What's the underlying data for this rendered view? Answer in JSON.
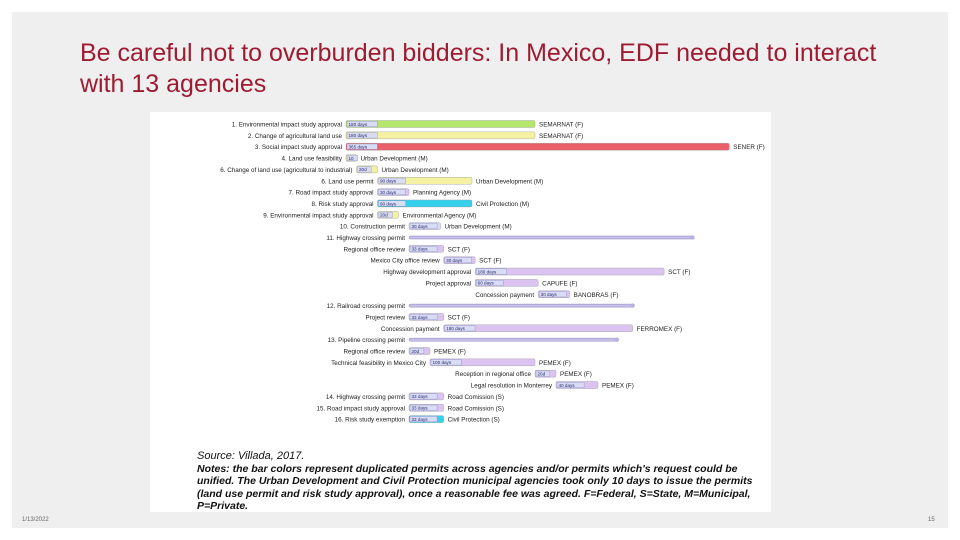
{
  "slide": {
    "title": "Be careful not to overburden bidders: In Mexico,  EDF needed to interact with 13 agencies",
    "date": "1/13/2022",
    "page_number": "15"
  },
  "chart_data": {
    "type": "gantt",
    "colors": {
      "green": "#b5e86a",
      "yellow": "#f4f2a2",
      "red": "#ea5f6a",
      "cyan": "#35d0ec",
      "purple": "#dcc4f2",
      "label_box": "#d9dcf4"
    },
    "rows": [
      {
        "task": "1. Environmental impact study approval",
        "bar": "180 days",
        "start": 0,
        "days": 180,
        "color": "green",
        "agency": "SEMARNAT (F)"
      },
      {
        "task": "2. Change of agricultural land use",
        "bar": "180 days",
        "start": 0,
        "days": 180,
        "color": "yellow",
        "agency": "SEMARNAT (F)"
      },
      {
        "task": "3. Social impact study approval",
        "bar": "365 days",
        "start": 0,
        "days": 365,
        "color": "red",
        "agency": "SENER (F)"
      },
      {
        "task": "4. Land use feasibility",
        "bar": "10",
        "start": 0,
        "days": 10,
        "color": "yellow",
        "agency": "Urban Development (M)"
      },
      {
        "task": "6. Change of land use (agricultural to industrial)",
        "bar": "20d",
        "start": 10,
        "days": 20,
        "color": "yellow",
        "agency": "Urban Development (M)"
      },
      {
        "task": "6. Land use permit",
        "bar": "90 days",
        "start": 30,
        "days": 90,
        "color": "yellow",
        "agency": "Urban Development (M)"
      },
      {
        "task": "7. Road impact study approval",
        "bar": "30 days",
        "start": 30,
        "days": 30,
        "color": "purple",
        "agency": "Planning Agency (M)"
      },
      {
        "task": "8. Risk study approval",
        "bar": "90 days",
        "start": 30,
        "days": 90,
        "color": "cyan",
        "agency": "Civil Protection (M)"
      },
      {
        "task": "9. Environmental impact study approval",
        "bar": "20d",
        "start": 30,
        "days": 20,
        "color": "yellow",
        "agency": "Environmental Agency (M)"
      },
      {
        "task": "10. Construction permit",
        "bar": "30 days",
        "start": 60,
        "days": 30,
        "color": "label_box",
        "agency": "Urban Development (M)"
      },
      {
        "task": "11. Highway crossing permit",
        "bar": "",
        "start": 60,
        "days": 270,
        "color": "summary",
        "agency": ""
      },
      {
        "task": "Regional office review",
        "bar": "33 days",
        "start": 60,
        "days": 33,
        "color": "purple",
        "agency": "SCT (F)"
      },
      {
        "task": "Mexico City office review",
        "bar": "30 days",
        "start": 93,
        "days": 30,
        "color": "purple",
        "agency": "SCT (F)"
      },
      {
        "task": "Highway development approval",
        "bar": "180 days",
        "start": 123,
        "days": 180,
        "color": "purple",
        "agency": "SCT (F)"
      },
      {
        "task": "Project approval",
        "bar": "60 days",
        "start": 123,
        "days": 60,
        "color": "purple",
        "agency": "CAPUFE (F)"
      },
      {
        "task": "Concession payment",
        "bar": "30 days",
        "start": 183,
        "days": 30,
        "color": "purple",
        "agency": "BANOBRAS (F)"
      },
      {
        "task": "12. Railroad crossing permit",
        "bar": "",
        "start": 60,
        "days": 213,
        "color": "summary",
        "agency": ""
      },
      {
        "task": "Project review",
        "bar": "33 days",
        "start": 60,
        "days": 33,
        "color": "purple",
        "agency": "SCT (F)"
      },
      {
        "task": "Concession payment",
        "bar": "180 days",
        "start": 93,
        "days": 180,
        "color": "purple",
        "agency": "FERROMEX (F)"
      },
      {
        "task": "13. Pipeline crossing permit",
        "bar": "",
        "start": 60,
        "days": 198,
        "color": "summary",
        "agency": ""
      },
      {
        "task": "Regional office review",
        "bar": "20d",
        "start": 60,
        "days": 20,
        "color": "purple",
        "agency": "PEMEX (F)"
      },
      {
        "task": "Technical feasibility in Mexico City",
        "bar": "100 days",
        "start": 80,
        "days": 100,
        "color": "purple",
        "agency": "PEMEX (F)"
      },
      {
        "task": "Reception in regional office",
        "bar": "20d",
        "start": 180,
        "days": 20,
        "color": "purple",
        "agency": "PEMEX (F)"
      },
      {
        "task": "Legal resolution in Monterrey",
        "bar": "40 days",
        "start": 200,
        "days": 40,
        "color": "purple",
        "agency": "PEMEX (F)"
      },
      {
        "task": "14. Highway crossing permit",
        "bar": "33 days",
        "start": 60,
        "days": 33,
        "color": "purple",
        "agency": "Road Comission (S)"
      },
      {
        "task": "15. Road impact study approval",
        "bar": "33 days",
        "start": 60,
        "days": 33,
        "color": "purple",
        "agency": "Road Comission (S)"
      },
      {
        "task": "16. Risk study exemption",
        "bar": "33 days",
        "start": 60,
        "days": 33,
        "color": "cyan",
        "agency": "Civil Protection (S)"
      }
    ]
  },
  "notes": {
    "source": "Source: Villada, 2017.",
    "text": "Notes: the bar colors represent duplicated permits across agencies and/or permits which's request could be unified. The Urban Development and Civil Protection municipal agencies took only 10 days to issue the permits (land use permit and risk study approval), once a reasonable fee was agreed. F=Federal, S=State, M=Municipal, P=Private."
  }
}
